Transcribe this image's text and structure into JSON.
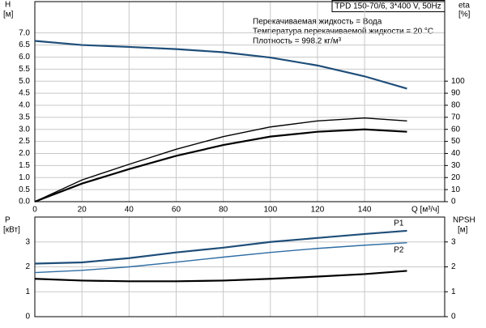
{
  "chart_data": [
    {
      "type": "line",
      "title": "TPD 150-70/6, 3*400 V, 50Hz",
      "annotations": [
        "Перекачиваемая жидкость = Вода",
        "Температура перекачиваемой жидкости = 20 °C",
        "Плотность = 998.2 кг/м³"
      ],
      "ylabel": "H",
      "ylabel_unit": "[м]",
      "y2label": "eta",
      "y2label_unit": "[%]",
      "xlabel": "Q [м³/ч]",
      "x": [
        0,
        20,
        40,
        60,
        80,
        100,
        120,
        140,
        158
      ],
      "xlim": [
        0,
        174
      ],
      "xticks": [
        0,
        20,
        40,
        60,
        80,
        100,
        120,
        140
      ],
      "ylim": [
        0,
        8.3
      ],
      "yticks": [
        {
          "value": 0,
          "label": "0.0"
        },
        {
          "value": 0.5,
          "label": "0.5"
        },
        {
          "value": 1,
          "label": "1.0"
        },
        {
          "value": 1.5,
          "label": "1.5"
        },
        {
          "value": 2,
          "label": "2.0"
        },
        {
          "value": 2.5,
          "label": "2.5"
        },
        {
          "value": 3,
          "label": "3.0"
        },
        {
          "value": 3.5,
          "label": "3.5"
        },
        {
          "value": 4,
          "label": "4.0"
        },
        {
          "value": 4.5,
          "label": "4.5"
        },
        {
          "value": 5,
          "label": "5.0"
        },
        {
          "value": 5.5,
          "label": "5.5"
        },
        {
          "value": 6,
          "label": "6.0"
        },
        {
          "value": 6.5,
          "label": "6.5"
        },
        {
          "value": 7,
          "label": "7.0"
        }
      ],
      "y2lim": [
        0,
        166
      ],
      "y2ticks": [
        0,
        10,
        20,
        30,
        40,
        50,
        60,
        70,
        80,
        90,
        100
      ],
      "grid": true,
      "series": [
        {
          "color": "#1f4e79",
          "values": [
            6.67,
            6.5,
            6.42,
            6.33,
            6.2,
            5.98,
            5.65,
            5.2,
            4.69
          ]
        },
        {
          "color": "#000000",
          "axis": "y2",
          "values": [
            0,
            18,
            31,
            43.5,
            54,
            62,
            67,
            69.4,
            67
          ]
        },
        {
          "color": "#000000",
          "axis": "y2",
          "values": [
            0,
            15,
            27,
            38,
            47,
            54,
            58,
            60,
            58
          ]
        }
      ]
    },
    {
      "type": "line",
      "ylabel": "P",
      "ylabel_unit": "[кВт]",
      "y2label": "NPSH",
      "y2label_unit": "[м]",
      "x": [
        0,
        20,
        40,
        60,
        80,
        100,
        120,
        140,
        158
      ],
      "xlim": [
        0,
        174
      ],
      "ylim": [
        0,
        4
      ],
      "yticks": [
        0,
        1,
        2,
        3
      ],
      "y2lim": [
        0,
        4
      ],
      "y2ticks": [
        0,
        1,
        2,
        3
      ],
      "grid": true,
      "series": [
        {
          "name": "P1",
          "color": "#1f4e79",
          "values": [
            2.13,
            2.18,
            2.35,
            2.58,
            2.77,
            3.0,
            3.16,
            3.32,
            3.45
          ]
        },
        {
          "name": "P2",
          "color": "#2e6da4",
          "values": [
            1.77,
            1.86,
            2.0,
            2.19,
            2.39,
            2.58,
            2.74,
            2.87,
            2.97
          ]
        },
        {
          "color": "#000000",
          "axis": "y2",
          "values": [
            1.52,
            1.45,
            1.42,
            1.42,
            1.45,
            1.52,
            1.61,
            1.71,
            1.84
          ]
        }
      ]
    }
  ]
}
